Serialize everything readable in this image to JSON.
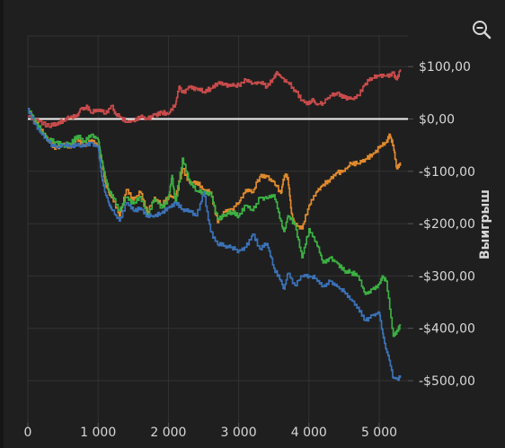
{
  "zoom": {
    "icon": "zoom-out-icon"
  },
  "chart_data": {
    "type": "line",
    "ylabel": "Выигрыш",
    "xlim": [
      0,
      5330
    ],
    "ylim": [
      -520,
      155
    ],
    "x_ticks": [
      0,
      1000,
      2000,
      3000,
      4000,
      5000
    ],
    "x_tick_labels": [
      "0",
      "1 000",
      "2 000",
      "3 000",
      "4 000",
      "5 000"
    ],
    "y_ticks": [
      100,
      0,
      -100,
      -200,
      -300,
      -400,
      -500
    ],
    "y_tick_labels": [
      "$100,00",
      "$0,00",
      "-$100,00",
      "-$200,00",
      "-$300,00",
      "-$400,00",
      "-$500,00"
    ],
    "y_axis_position": "right",
    "grid": true,
    "zero_line": true,
    "series": [
      {
        "color": "#c84b4b",
        "points": [
          [
            0,
            5
          ],
          [
            150,
            -5
          ],
          [
            300,
            -15
          ],
          [
            400,
            -8
          ],
          [
            500,
            -3
          ],
          [
            600,
            3
          ],
          [
            700,
            5
          ],
          [
            750,
            20
          ],
          [
            850,
            22
          ],
          [
            900,
            12
          ],
          [
            1000,
            18
          ],
          [
            1100,
            10
          ],
          [
            1200,
            25
          ],
          [
            1250,
            8
          ],
          [
            1300,
            5
          ],
          [
            1400,
            -5
          ],
          [
            1500,
            -3
          ],
          [
            1600,
            5
          ],
          [
            1700,
            0
          ],
          [
            1800,
            8
          ],
          [
            1900,
            12
          ],
          [
            2000,
            10
          ],
          [
            2100,
            28
          ],
          [
            2150,
            62
          ],
          [
            2200,
            50
          ],
          [
            2300,
            60
          ],
          [
            2400,
            58
          ],
          [
            2500,
            52
          ],
          [
            2600,
            58
          ],
          [
            2700,
            68
          ],
          [
            2800,
            65
          ],
          [
            2900,
            63
          ],
          [
            3000,
            65
          ],
          [
            3100,
            75
          ],
          [
            3200,
            68
          ],
          [
            3300,
            70
          ],
          [
            3400,
            62
          ],
          [
            3500,
            78
          ],
          [
            3550,
            88
          ],
          [
            3600,
            80
          ],
          [
            3700,
            70
          ],
          [
            3800,
            55
          ],
          [
            3900,
            35
          ],
          [
            4000,
            28
          ],
          [
            4050,
            38
          ],
          [
            4100,
            28
          ],
          [
            4200,
            30
          ],
          [
            4300,
            45
          ],
          [
            4400,
            50
          ],
          [
            4500,
            40
          ],
          [
            4600,
            38
          ],
          [
            4700,
            45
          ],
          [
            4800,
            68
          ],
          [
            4900,
            78
          ],
          [
            5000,
            83
          ],
          [
            5100,
            82
          ],
          [
            5200,
            88
          ],
          [
            5250,
            75
          ],
          [
            5300,
            95
          ]
        ]
      },
      {
        "color": "#e08a2c",
        "points": [
          [
            0,
            20
          ],
          [
            100,
            -5
          ],
          [
            200,
            -20
          ],
          [
            300,
            -45
          ],
          [
            400,
            -55
          ],
          [
            500,
            -48
          ],
          [
            600,
            -55
          ],
          [
            700,
            -38
          ],
          [
            800,
            -50
          ],
          [
            900,
            -40
          ],
          [
            1000,
            -50
          ],
          [
            1050,
            -80
          ],
          [
            1100,
            -120
          ],
          [
            1150,
            -140
          ],
          [
            1200,
            -148
          ],
          [
            1300,
            -185
          ],
          [
            1400,
            -135
          ],
          [
            1500,
            -155
          ],
          [
            1600,
            -140
          ],
          [
            1700,
            -180
          ],
          [
            1800,
            -150
          ],
          [
            1900,
            -165
          ],
          [
            2000,
            -148
          ],
          [
            2100,
            -150
          ],
          [
            2200,
            -95
          ],
          [
            2300,
            -122
          ],
          [
            2400,
            -120
          ],
          [
            2500,
            -135
          ],
          [
            2600,
            -140
          ],
          [
            2700,
            -198
          ],
          [
            2800,
            -178
          ],
          [
            2900,
            -172
          ],
          [
            3000,
            -160
          ],
          [
            3100,
            -135
          ],
          [
            3200,
            -140
          ],
          [
            3300,
            -110
          ],
          [
            3400,
            -110
          ],
          [
            3500,
            -120
          ],
          [
            3600,
            -142
          ],
          [
            3650,
            -108
          ],
          [
            3700,
            -112
          ],
          [
            3750,
            -180
          ],
          [
            3800,
            -202
          ],
          [
            3900,
            -210
          ],
          [
            4000,
            -165
          ],
          [
            4100,
            -140
          ],
          [
            4200,
            -125
          ],
          [
            4300,
            -115
          ],
          [
            4400,
            -102
          ],
          [
            4500,
            -100
          ],
          [
            4600,
            -85
          ],
          [
            4700,
            -85
          ],
          [
            4800,
            -77
          ],
          [
            4900,
            -68
          ],
          [
            5000,
            -55
          ],
          [
            5100,
            -45
          ],
          [
            5150,
            -30
          ],
          [
            5200,
            -50
          ],
          [
            5250,
            -95
          ],
          [
            5300,
            -83
          ]
        ]
      },
      {
        "color": "#3cb043",
        "points": [
          [
            0,
            20
          ],
          [
            100,
            -3
          ],
          [
            200,
            -25
          ],
          [
            300,
            -40
          ],
          [
            400,
            -45
          ],
          [
            500,
            -50
          ],
          [
            600,
            -48
          ],
          [
            700,
            -32
          ],
          [
            800,
            -42
          ],
          [
            900,
            -30
          ],
          [
            1000,
            -40
          ],
          [
            1050,
            -80
          ],
          [
            1100,
            -110
          ],
          [
            1150,
            -135
          ],
          [
            1200,
            -145
          ],
          [
            1300,
            -175
          ],
          [
            1400,
            -150
          ],
          [
            1500,
            -162
          ],
          [
            1600,
            -148
          ],
          [
            1700,
            -185
          ],
          [
            1800,
            -152
          ],
          [
            1900,
            -170
          ],
          [
            2000,
            -152
          ],
          [
            2050,
            -108
          ],
          [
            2100,
            -160
          ],
          [
            2200,
            -75
          ],
          [
            2300,
            -118
          ],
          [
            2400,
            -138
          ],
          [
            2500,
            -140
          ],
          [
            2600,
            -143
          ],
          [
            2700,
            -190
          ],
          [
            2800,
            -183
          ],
          [
            2900,
            -178
          ],
          [
            3000,
            -185
          ],
          [
            3100,
            -165
          ],
          [
            3200,
            -175
          ],
          [
            3300,
            -150
          ],
          [
            3400,
            -152
          ],
          [
            3500,
            -145
          ],
          [
            3600,
            -195
          ],
          [
            3650,
            -215
          ],
          [
            3700,
            -185
          ],
          [
            3800,
            -202
          ],
          [
            3900,
            -265
          ],
          [
            4000,
            -210
          ],
          [
            4100,
            -235
          ],
          [
            4200,
            -275
          ],
          [
            4300,
            -265
          ],
          [
            4400,
            -275
          ],
          [
            4500,
            -290
          ],
          [
            4600,
            -293
          ],
          [
            4700,
            -300
          ],
          [
            4800,
            -335
          ],
          [
            4900,
            -325
          ],
          [
            5000,
            -315
          ],
          [
            5050,
            -300
          ],
          [
            5100,
            -310
          ],
          [
            5200,
            -415
          ],
          [
            5250,
            -405
          ],
          [
            5300,
            -395
          ]
        ]
      },
      {
        "color": "#3b72b8",
        "points": [
          [
            0,
            20
          ],
          [
            100,
            -10
          ],
          [
            200,
            -30
          ],
          [
            300,
            -45
          ],
          [
            400,
            -55
          ],
          [
            500,
            -50
          ],
          [
            600,
            -52
          ],
          [
            700,
            -50
          ],
          [
            800,
            -52
          ],
          [
            900,
            -45
          ],
          [
            1000,
            -55
          ],
          [
            1050,
            -110
          ],
          [
            1100,
            -140
          ],
          [
            1150,
            -160
          ],
          [
            1200,
            -175
          ],
          [
            1300,
            -195
          ],
          [
            1400,
            -160
          ],
          [
            1500,
            -175
          ],
          [
            1600,
            -170
          ],
          [
            1700,
            -185
          ],
          [
            1800,
            -185
          ],
          [
            1900,
            -180
          ],
          [
            2000,
            -170
          ],
          [
            2100,
            -160
          ],
          [
            2200,
            -172
          ],
          [
            2300,
            -175
          ],
          [
            2400,
            -185
          ],
          [
            2500,
            -140
          ],
          [
            2600,
            -215
          ],
          [
            2700,
            -240
          ],
          [
            2800,
            -242
          ],
          [
            2900,
            -245
          ],
          [
            3000,
            -252
          ],
          [
            3100,
            -245
          ],
          [
            3200,
            -220
          ],
          [
            3300,
            -248
          ],
          [
            3400,
            -238
          ],
          [
            3500,
            -285
          ],
          [
            3600,
            -310
          ],
          [
            3650,
            -325
          ],
          [
            3700,
            -295
          ],
          [
            3800,
            -318
          ],
          [
            3900,
            -300
          ],
          [
            4000,
            -300
          ],
          [
            4100,
            -305
          ],
          [
            4200,
            -320
          ],
          [
            4300,
            -310
          ],
          [
            4400,
            -320
          ],
          [
            4500,
            -330
          ],
          [
            4600,
            -345
          ],
          [
            4700,
            -360
          ],
          [
            4800,
            -385
          ],
          [
            4900,
            -375
          ],
          [
            5000,
            -370
          ],
          [
            5050,
            -410
          ],
          [
            5100,
            -440
          ],
          [
            5150,
            -462
          ],
          [
            5200,
            -495
          ],
          [
            5300,
            -495
          ]
        ]
      }
    ]
  }
}
